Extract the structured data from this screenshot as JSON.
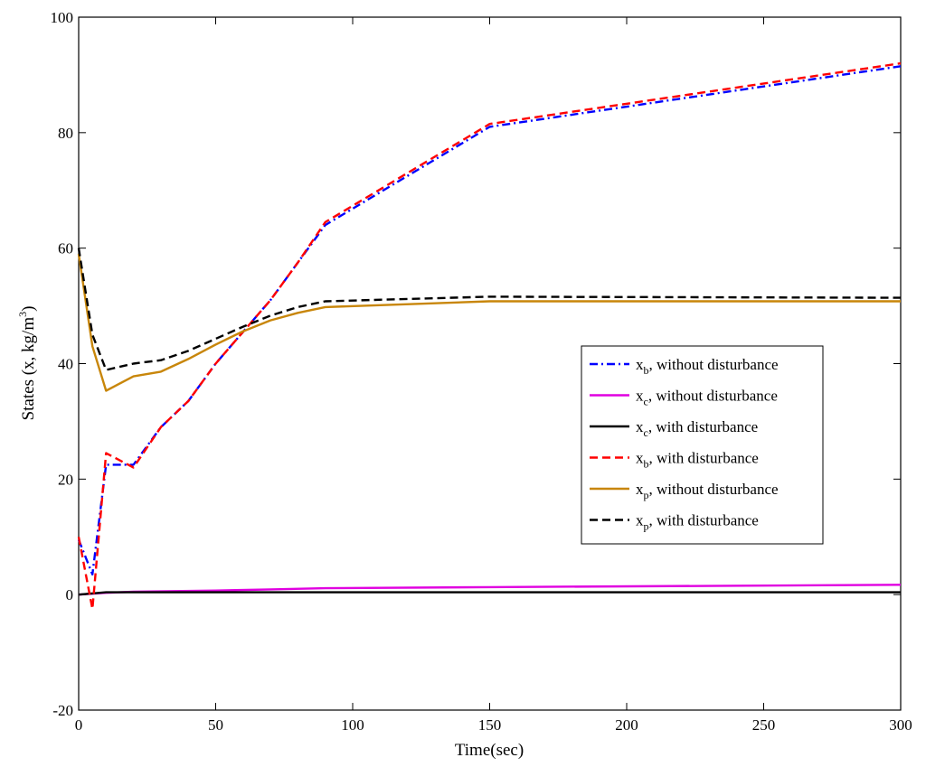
{
  "chart_data": {
    "type": "line",
    "xlabel": "Time(sec)",
    "ylabel": {
      "base": "States (x, kg/m",
      "sup": "3",
      "tail": ")"
    },
    "xlim": [
      0,
      300
    ],
    "ylim": [
      -20,
      100
    ],
    "xticks": [
      0,
      50,
      100,
      150,
      200,
      250,
      300
    ],
    "yticks": [
      -20,
      0,
      20,
      40,
      60,
      80,
      100
    ],
    "grid": false,
    "legend_position": "center-right",
    "series": [
      {
        "name": {
          "main": "x",
          "sub": "b",
          "rest": ", without disturbance"
        },
        "color": "#0000ff",
        "style": "dashdot",
        "x": [
          0,
          5,
          10,
          20,
          30,
          40,
          50,
          60,
          70,
          80,
          90,
          150,
          300
        ],
        "y": [
          9.5,
          3.5,
          22.5,
          22.5,
          29,
          33.5,
          40,
          45.5,
          51,
          57.5,
          64,
          81,
          91.5
        ]
      },
      {
        "name": {
          "main": "x",
          "sub": "c",
          "rest": ", without disturbance"
        },
        "color": "#e000e0",
        "style": "solid",
        "x": [
          0,
          10,
          20,
          50,
          70,
          90,
          150,
          300
        ],
        "y": [
          0,
          0.3,
          0.5,
          0.7,
          0.9,
          1.1,
          1.3,
          1.7
        ]
      },
      {
        "name": {
          "main": "x",
          "sub": "c",
          "rest": ", with disturbance"
        },
        "color": "#000000",
        "style": "solid",
        "x": [
          0,
          10,
          20,
          50,
          150,
          300
        ],
        "y": [
          0,
          0.4,
          0.4,
          0.4,
          0.4,
          0.4
        ]
      },
      {
        "name": {
          "main": "x",
          "sub": "b",
          "rest": ", with disturbance"
        },
        "color": "#ff0000",
        "style": "dashed",
        "x": [
          0,
          5,
          10,
          20,
          30,
          40,
          50,
          60,
          70,
          80,
          90,
          150,
          300
        ],
        "y": [
          10,
          -2.5,
          24.5,
          22,
          29,
          33.5,
          40,
          45.5,
          51,
          57.5,
          64.5,
          81.5,
          92
        ]
      },
      {
        "name": {
          "main": "x",
          "sub": "p",
          "rest": ", without disturbance"
        },
        "color": "#c8860a",
        "style": "solid",
        "x": [
          0,
          5,
          10,
          20,
          30,
          40,
          50,
          60,
          70,
          80,
          90,
          150,
          300
        ],
        "y": [
          59,
          43,
          35.3,
          37.8,
          38.6,
          40.8,
          43.3,
          45.6,
          47.5,
          48.8,
          49.8,
          50.8,
          50.8
        ]
      },
      {
        "name": {
          "main": "x",
          "sub": "p",
          "rest": ", with disturbance"
        },
        "color": "#000000",
        "style": "dashed",
        "x": [
          0,
          5,
          10,
          20,
          30,
          40,
          50,
          60,
          70,
          80,
          90,
          150,
          300
        ],
        "y": [
          60,
          45,
          38.9,
          40,
          40.6,
          42.2,
          44.3,
          46.4,
          48.3,
          49.8,
          50.8,
          51.6,
          51.4
        ]
      }
    ]
  }
}
